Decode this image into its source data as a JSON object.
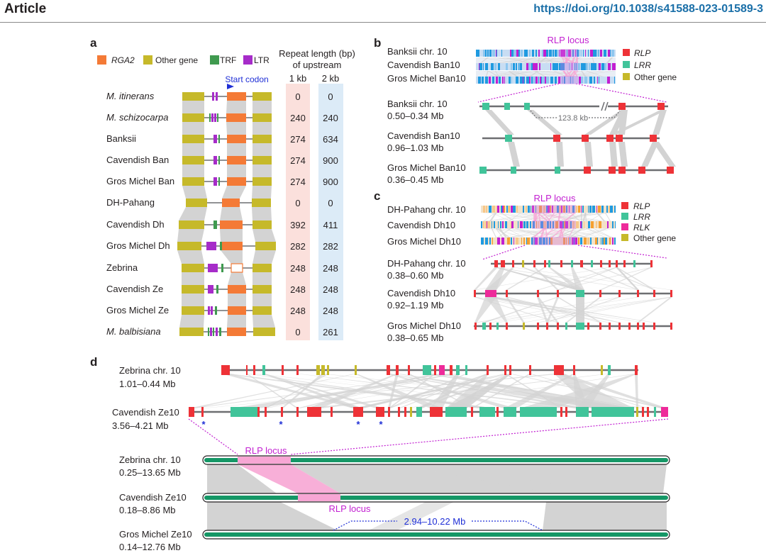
{
  "header": {
    "left": "Article",
    "right": "https://doi.org/10.1038/s41588-023-01589-3"
  },
  "colors": {
    "rga2": "#f47a36",
    "other": "#c6b92a",
    "trf": "#3f9a4f",
    "ltr": "#a62cc9",
    "rlp": "#ee3237",
    "lrr": "#41c49a",
    "rlk": "#ee2a9a",
    "blue": "#1f2fd6",
    "magenta": "#c21fd1",
    "grey": "#d3d3d3",
    "pink": "#f7a6d4",
    "green": "#159766"
  },
  "panel_a": {
    "label": "a",
    "legend": [
      {
        "label": "RGA2",
        "color": "#f47a36",
        "italic": true
      },
      {
        "label": "Other gene",
        "color": "#c6b92a",
        "italic": false
      },
      {
        "label": "TRF",
        "color": "#3f9a4f",
        "italic": false
      },
      {
        "label": "LTR",
        "color": "#a62cc9",
        "italic": false
      }
    ],
    "repeat_header": "Repeat length (bp)",
    "repeat_header2": "of upstream",
    "col_1kb": "1 kb",
    "col_2kb": "2 kb",
    "start_codon": "Start codon",
    "rows": [
      {
        "name": "M. itinerans",
        "italic": true,
        "kb1": "0",
        "kb2": "0"
      },
      {
        "name": "M. schizocarpa",
        "italic": true,
        "kb1": "240",
        "kb2": "240"
      },
      {
        "name": "Banksii",
        "italic": false,
        "kb1": "274",
        "kb2": "634"
      },
      {
        "name": "Cavendish Ban",
        "italic": false,
        "kb1": "274",
        "kb2": "900"
      },
      {
        "name": "Gros Michel Ban",
        "italic": false,
        "kb1": "274",
        "kb2": "900"
      },
      {
        "name": "DH-Pahang",
        "italic": false,
        "kb1": "0",
        "kb2": "0"
      },
      {
        "name": "Cavendish Dh",
        "italic": false,
        "kb1": "392",
        "kb2": "411"
      },
      {
        "name": "Gros Michel Dh",
        "italic": false,
        "kb1": "282",
        "kb2": "282"
      },
      {
        "name": "Zebrina",
        "italic": false,
        "kb1": "248",
        "kb2": "248"
      },
      {
        "name": "Cavendish Ze",
        "italic": false,
        "kb1": "248",
        "kb2": "248"
      },
      {
        "name": "Gros Michel Ze",
        "italic": false,
        "kb1": "248",
        "kb2": "248"
      },
      {
        "name": "M. balbisiana",
        "italic": true,
        "kb1": "0",
        "kb2": "261"
      }
    ]
  },
  "panel_b": {
    "label": "b",
    "locus": "RLP locus",
    "top_labels": [
      "Banksii chr. 10",
      "Cavendish Ban10",
      "Gros Michel Ban10"
    ],
    "legend": [
      {
        "label": "RLP",
        "color": "#ee3237"
      },
      {
        "label": "LRR",
        "color": "#41c49a"
      },
      {
        "label": "Other gene",
        "color": "#c6b92a"
      }
    ],
    "tracks": [
      {
        "name": "Banksii chr. 10",
        "range": "0.50–0.34 Mb"
      },
      {
        "name": "Cavendish Ban10",
        "range": "0.96–1.03 Mb"
      },
      {
        "name": "Gros Michel Ban10",
        "range": "0.36–0.45 Mb"
      }
    ],
    "gap": "123.8 kb"
  },
  "panel_c": {
    "label": "c",
    "locus": "RLP locus",
    "top_labels": [
      "DH-Pahang chr. 10",
      "Cavendish Dh10",
      "Gros Michel Dh10"
    ],
    "legend": [
      {
        "label": "RLP",
        "color": "#ee3237"
      },
      {
        "label": "LRR",
        "color": "#41c49a"
      },
      {
        "label": "RLK",
        "color": "#ee2a9a"
      },
      {
        "label": "Other gene",
        "color": "#c6b92a"
      }
    ],
    "tracks": [
      {
        "name": "DH-Pahang chr. 10",
        "range": "0.38–0.60 Mb"
      },
      {
        "name": "Cavendish Dh10",
        "range": "0.92–1.19 Mb"
      },
      {
        "name": "Gros Michel Dh10",
        "range": "0.38–0.65 Mb"
      }
    ]
  },
  "panel_d": {
    "label": "d",
    "tracks": [
      {
        "name": "Zebrina chr. 10",
        "range": "1.01–0.44 Mb"
      },
      {
        "name": "Cavendish Ze10",
        "range": "3.56–4.21 Mb"
      }
    ],
    "chromosomes": [
      {
        "name": "Zebrina chr. 10",
        "range": "0.25–13.65 Mb"
      },
      {
        "name": "Cavendish Ze10",
        "range": "0.18–8.86 Mb"
      },
      {
        "name": "Gros Michel Ze10",
        "range": "0.14–12.76 Mb"
      }
    ],
    "locus1": "RLP locus",
    "locus2": "RLP locus",
    "span": "2.94–10.22 Mb",
    "star": "*"
  }
}
